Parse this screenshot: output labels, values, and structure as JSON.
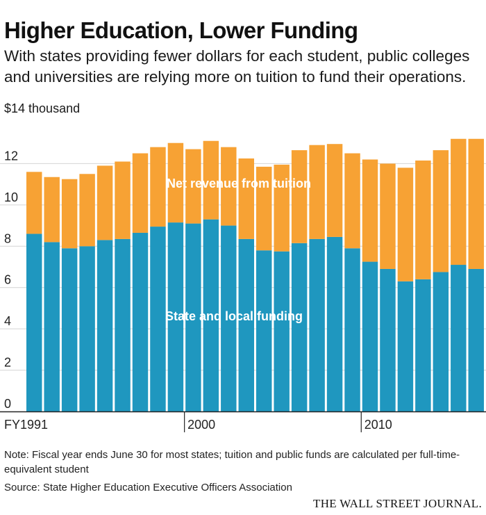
{
  "header": {
    "title": "Higher Education, Lower Funding",
    "subtitle": "With states providing fewer dollars for each student, public colleges and universities are relying more on tuition to fund their operations.",
    "unit_label": "$14 thousand"
  },
  "colors": {
    "state_local": "#1f97bf",
    "tuition": "#f7a234",
    "grid": "#d4d4d4",
    "axis": "#222222"
  },
  "chart_data": {
    "type": "bar",
    "stacked": true,
    "categories": [
      "FY1991",
      "1992",
      "1993",
      "1994",
      "1995",
      "1996",
      "1997",
      "1998",
      "1999",
      "2000",
      "2001",
      "2002",
      "2003",
      "2004",
      "2005",
      "2006",
      "2007",
      "2008",
      "2009",
      "2010",
      "2011",
      "2012",
      "2013",
      "2014",
      "2015",
      "2016"
    ],
    "x_tick_labels": [
      {
        "category_index": 0,
        "label": "FY1991"
      },
      {
        "category_index": 9,
        "label": "2000"
      },
      {
        "category_index": 19,
        "label": "2010"
      }
    ],
    "series": [
      {
        "name": "State and local funding",
        "values": [
          8.6,
          8.2,
          7.9,
          8.0,
          8.3,
          8.35,
          8.65,
          8.95,
          9.15,
          9.1,
          9.3,
          9.0,
          8.35,
          7.8,
          7.75,
          8.15,
          8.35,
          8.45,
          7.9,
          7.25,
          6.9,
          6.3,
          6.4,
          6.75,
          7.1,
          6.9
        ]
      },
      {
        "name": "Net revenue from tuition",
        "values": [
          3.0,
          3.15,
          3.35,
          3.5,
          3.6,
          3.75,
          3.85,
          3.85,
          3.85,
          3.6,
          3.8,
          3.8,
          3.9,
          4.05,
          4.2,
          4.5,
          4.55,
          4.5,
          4.6,
          4.95,
          5.1,
          5.5,
          5.75,
          5.9,
          6.1,
          6.3
        ]
      }
    ],
    "ylim": [
      0,
      14
    ],
    "yticks": [
      0,
      2,
      4,
      6,
      8,
      10,
      12
    ],
    "ylabel": "$14 thousand",
    "grid": true,
    "legend": "inline labels"
  },
  "annotations": {
    "tuition_label": "Net revenue from tuition",
    "state_label": "State and local funding"
  },
  "footer": {
    "note": "Note: Fiscal year ends June 30 for most states; tuition and public funds are calculated per full-time-equivalent student",
    "source": "Source: State Higher Education Executive Officers Association",
    "logo": "THE WALL STREET JOURNAL."
  }
}
